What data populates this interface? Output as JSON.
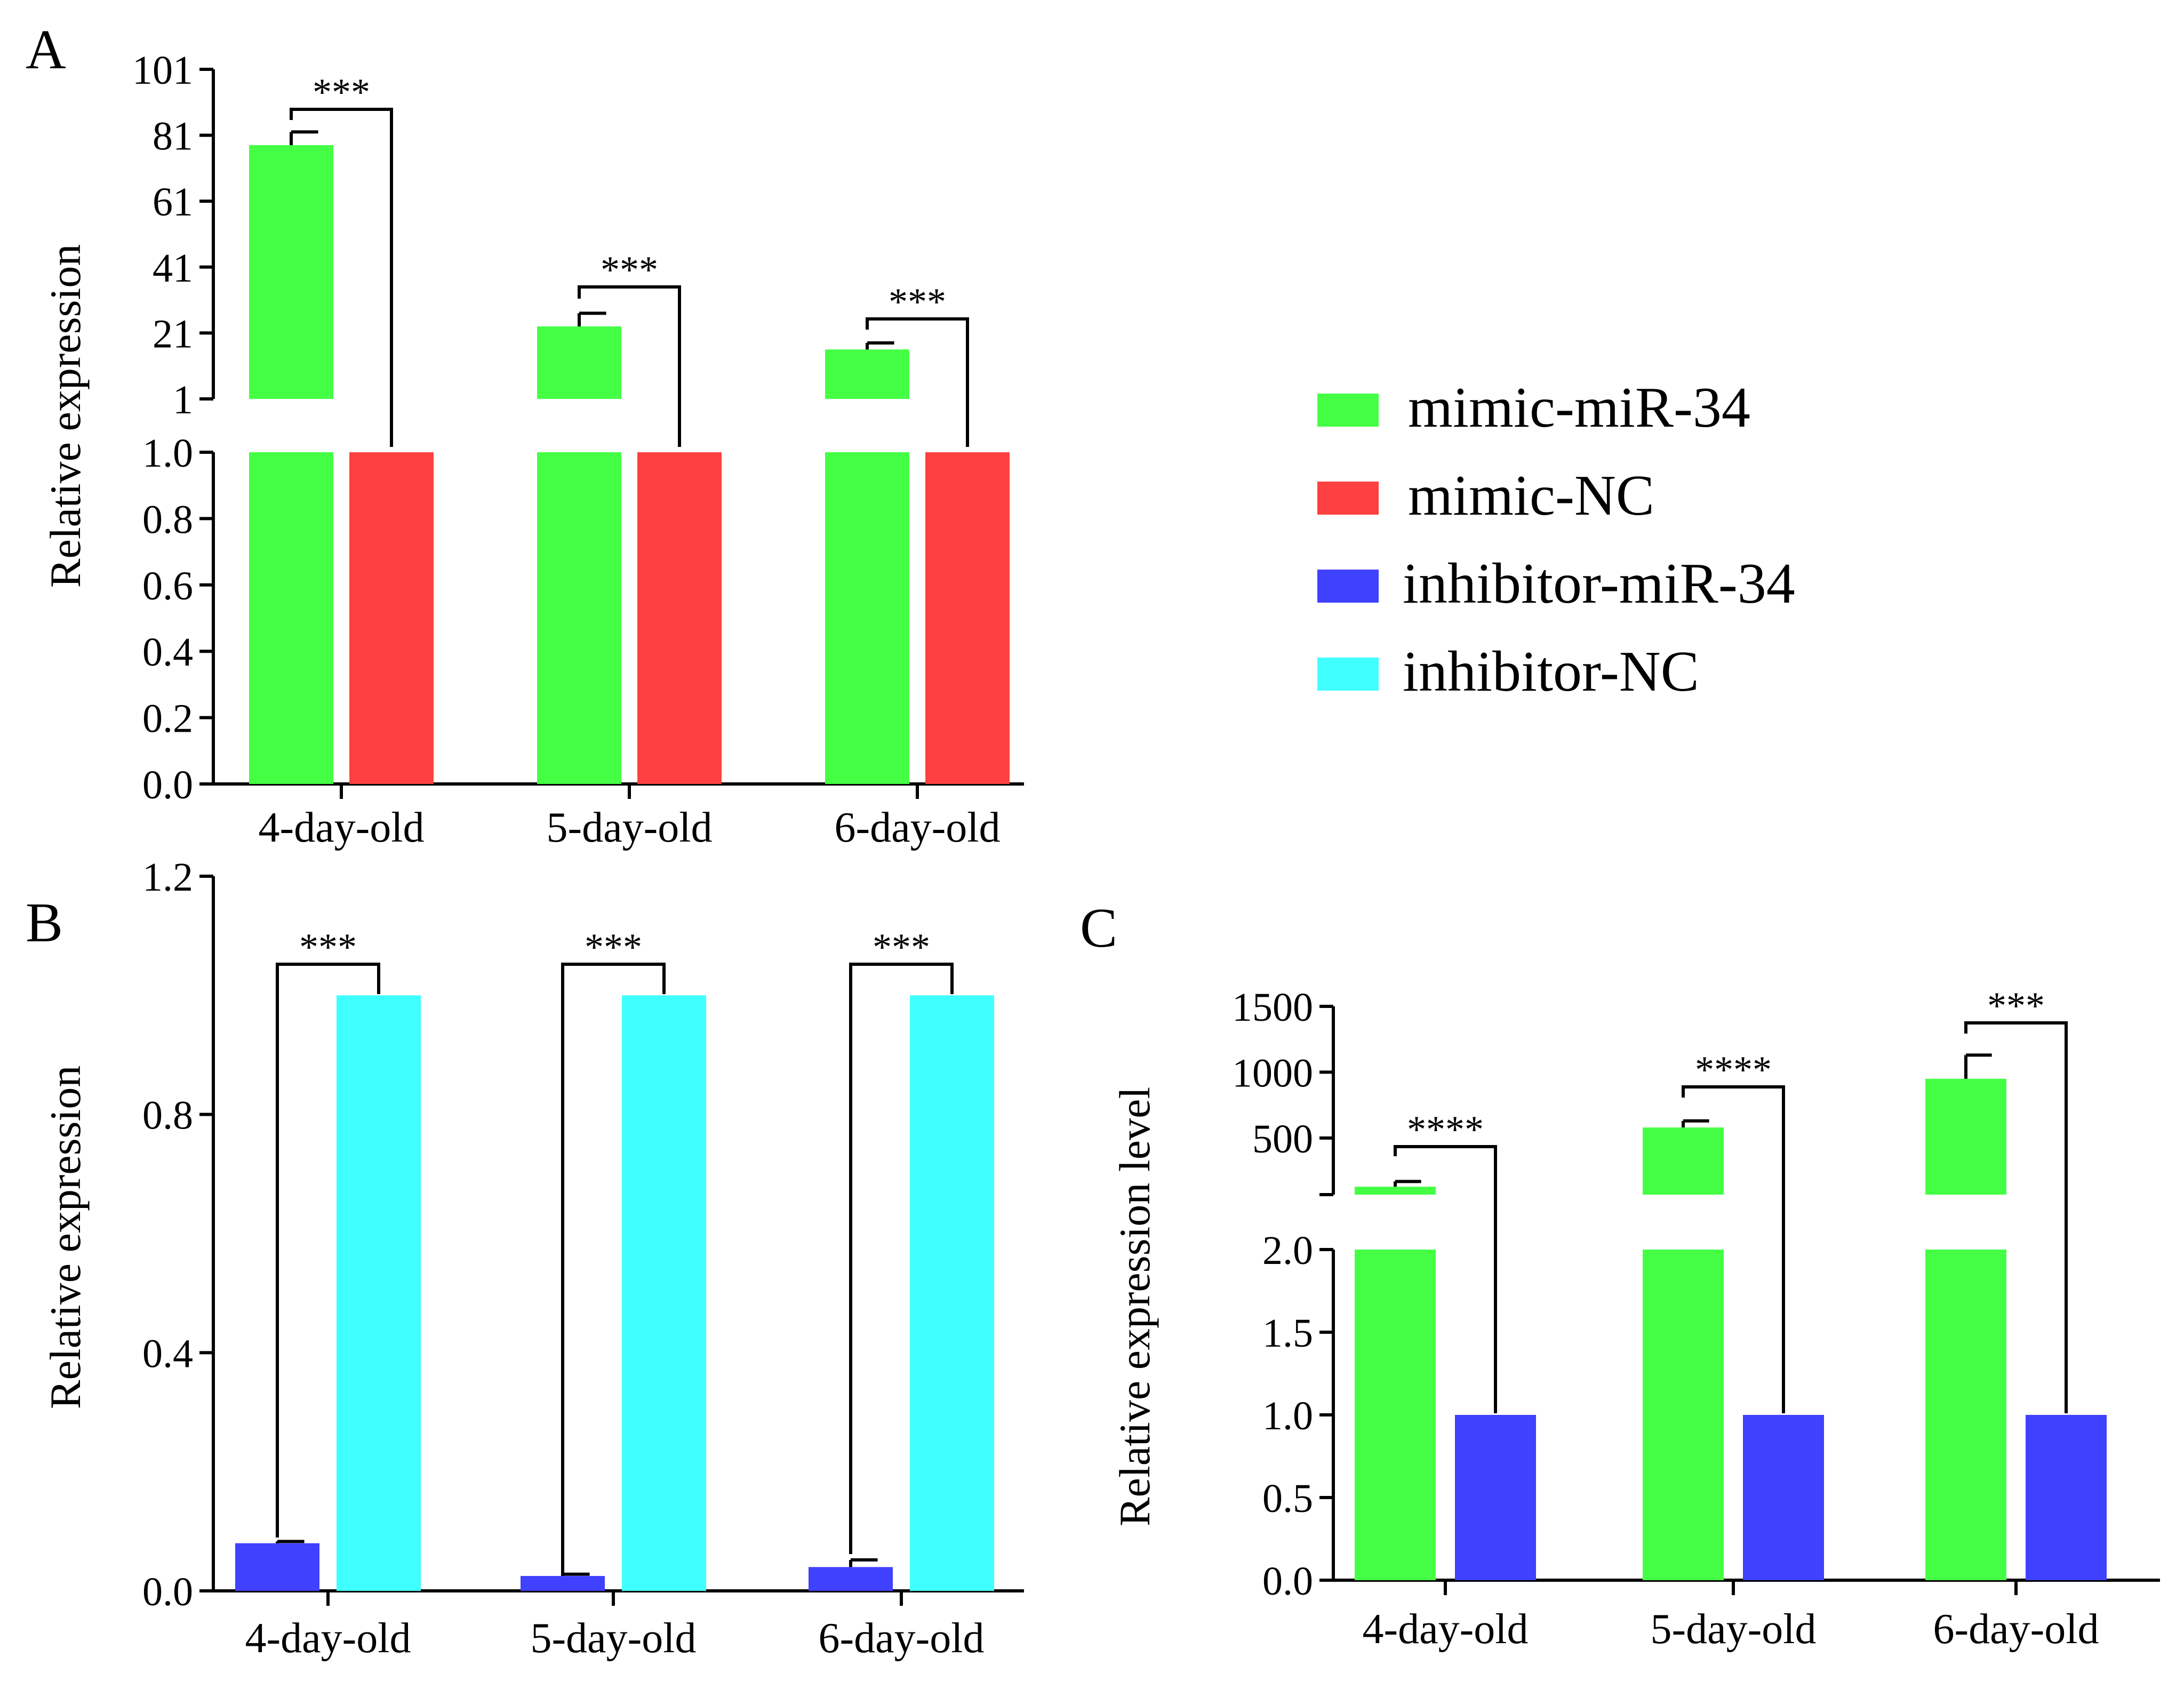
{
  "legend": [
    {
      "label": "mimic-miR-34",
      "color": "#44ff44"
    },
    {
      "label": "mimic-NC",
      "color": "#ff4040"
    },
    {
      "label": "inhibitor-miR-34",
      "color": "#4040ff"
    },
    {
      "label": "inhibitor-NC",
      "color": "#40ffff"
    }
  ],
  "chart_data": [
    {
      "panel": "A",
      "type": "bar",
      "ylabel": "Relative expression",
      "categories": [
        "4-day-old",
        "5-day-old",
        "6-day-old"
      ],
      "broken_axis": {
        "lower": {
          "ylim": [
            0,
            1.0
          ],
          "ticks": [
            "0.0",
            "0.2",
            "0.4",
            "0.6",
            "0.8",
            "1.0"
          ]
        },
        "upper": {
          "ylim": [
            1,
            101
          ],
          "ticks": [
            "1",
            "21",
            "41",
            "61",
            "81",
            "101"
          ]
        }
      },
      "series": [
        {
          "name": "mimic-miR-34",
          "color": "#44ff44",
          "values": [
            78,
            23,
            16
          ],
          "errors": [
            4,
            4,
            2
          ]
        },
        {
          "name": "mimic-NC",
          "color": "#ff4040",
          "values": [
            1.0,
            1.0,
            1.0
          ],
          "errors": [
            0,
            0,
            0
          ]
        }
      ],
      "significance": [
        "***",
        "***",
        "***"
      ]
    },
    {
      "panel": "B",
      "type": "bar",
      "ylabel": "Relative expression",
      "categories": [
        "4-day-old",
        "5-day-old",
        "6-day-old"
      ],
      "ylim": [
        0,
        1.2
      ],
      "yticks": [
        "0.0",
        "0.4",
        "0.8",
        "1.2"
      ],
      "series": [
        {
          "name": "inhibitor-miR-34",
          "color": "#4040ff",
          "values": [
            0.08,
            0.025,
            0.04
          ],
          "errors": [
            0.003,
            0.003,
            0.012
          ]
        },
        {
          "name": "inhibitor-NC",
          "color": "#40ffff",
          "values": [
            1.0,
            1.0,
            1.0
          ],
          "errors": [
            0,
            0,
            0
          ]
        }
      ],
      "significance": [
        "***",
        "***",
        "***"
      ]
    },
    {
      "panel": "C",
      "type": "bar",
      "ylabel": "Relative expression level",
      "categories": [
        "4-day-old",
        "5-day-old",
        "6-day-old"
      ],
      "broken_axis": {
        "lower": {
          "ylim": [
            0,
            2.0
          ],
          "ticks": [
            "0.0",
            "0.5",
            "1.0",
            "1.5",
            "2.0"
          ]
        },
        "upper": {
          "ylim": [
            70,
            1500
          ],
          "ticks": [
            "500",
            "1000",
            "1500"
          ]
        }
      },
      "series": [
        {
          "name": "mimic-miR-34",
          "color": "#44ff44",
          "values": [
            130,
            580,
            950
          ],
          "errors": [
            40,
            50,
            180
          ]
        },
        {
          "name": "inhibitor-miR-34",
          "color": "#4040ff",
          "values": [
            1.0,
            1.0,
            1.0
          ],
          "errors": [
            0,
            0,
            0
          ]
        }
      ],
      "significance": [
        "****",
        "****",
        "***"
      ]
    }
  ]
}
